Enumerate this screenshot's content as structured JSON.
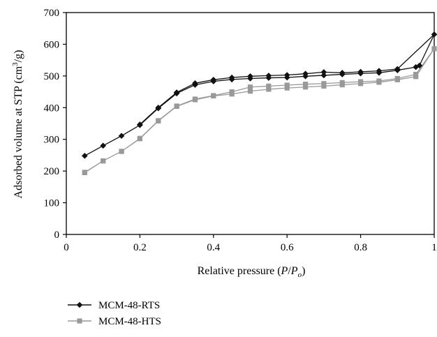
{
  "chart_data": {
    "type": "line",
    "xlabel_parts": {
      "text": "Relative pressure (",
      "p": "P",
      "slash": "/",
      "po": "P",
      "po_sub": "o",
      "close": ")"
    },
    "ylabel_parts": {
      "text": "Adsorbed volume at STP (cm",
      "sup": "3",
      "unit_end": "/g)"
    },
    "xlim": [
      0,
      1
    ],
    "ylim": [
      0,
      700
    ],
    "xticks": [
      0,
      0.2,
      0.4,
      0.6,
      0.8,
      1
    ],
    "xtick_labels": [
      "0",
      "0.2",
      "0.4",
      "0.6",
      "0.8",
      "1"
    ],
    "yticks": [
      0,
      100,
      200,
      300,
      400,
      500,
      600,
      700
    ],
    "ytick_labels": [
      "0",
      "100",
      "200",
      "300",
      "400",
      "500",
      "600",
      "700"
    ],
    "grid": false,
    "legend_position": "bottom-left, below plot",
    "series": [
      {
        "name": "MCM-48-RTS",
        "color": "#111111",
        "marker": "diamond",
        "points": [
          [
            0.05,
            248
          ],
          [
            0.1,
            280
          ],
          [
            0.15,
            311
          ],
          [
            0.2,
            345
          ],
          [
            0.25,
            398
          ],
          [
            0.3,
            445
          ],
          [
            0.35,
            472
          ],
          [
            0.4,
            483
          ],
          [
            0.45,
            489
          ],
          [
            0.5,
            492
          ],
          [
            0.55,
            494
          ],
          [
            0.6,
            495
          ],
          [
            0.65,
            499
          ],
          [
            0.7,
            502
          ],
          [
            0.75,
            505
          ],
          [
            0.8,
            508
          ],
          [
            0.85,
            510
          ],
          [
            0.9,
            518
          ],
          [
            0.95,
            528
          ],
          [
            0.96,
            533
          ],
          [
            1.0,
            631
          ],
          [
            0.9,
            522
          ],
          [
            0.85,
            516
          ],
          [
            0.8,
            513
          ],
          [
            0.75,
            510
          ],
          [
            0.7,
            512
          ],
          [
            0.65,
            507
          ],
          [
            0.6,
            503
          ],
          [
            0.55,
            501
          ],
          [
            0.5,
            499
          ],
          [
            0.45,
            495
          ],
          [
            0.4,
            488
          ],
          [
            0.35,
            477
          ],
          [
            0.3,
            448
          ],
          [
            0.25,
            400
          ],
          [
            0.2,
            347
          ]
        ]
      },
      {
        "name": "MCM-48-HTS",
        "color": "#999999",
        "marker": "square",
        "points": [
          [
            0.05,
            195
          ],
          [
            0.1,
            232
          ],
          [
            0.15,
            262
          ],
          [
            0.2,
            302
          ],
          [
            0.25,
            358
          ],
          [
            0.3,
            404
          ],
          [
            0.35,
            425
          ],
          [
            0.4,
            437
          ],
          [
            0.45,
            443
          ],
          [
            0.5,
            452
          ],
          [
            0.55,
            458
          ],
          [
            0.6,
            462
          ],
          [
            0.65,
            465
          ],
          [
            0.7,
            468
          ],
          [
            0.75,
            472
          ],
          [
            0.8,
            476
          ],
          [
            0.85,
            480
          ],
          [
            0.9,
            488
          ],
          [
            0.95,
            498
          ],
          [
            1.0,
            586
          ],
          [
            0.95,
            505
          ],
          [
            0.9,
            492
          ],
          [
            0.85,
            484
          ],
          [
            0.8,
            482
          ],
          [
            0.75,
            479
          ],
          [
            0.7,
            476
          ],
          [
            0.65,
            474
          ],
          [
            0.6,
            471
          ],
          [
            0.55,
            468
          ],
          [
            0.5,
            465
          ],
          [
            0.45,
            450
          ],
          [
            0.4,
            438
          ],
          [
            0.35,
            427
          ],
          [
            0.3,
            405
          ],
          [
            0.25,
            359
          ],
          [
            0.2,
            303
          ],
          [
            0.15,
            262
          ],
          [
            0.1,
            232
          ],
          [
            0.05,
            196
          ]
        ]
      }
    ]
  }
}
